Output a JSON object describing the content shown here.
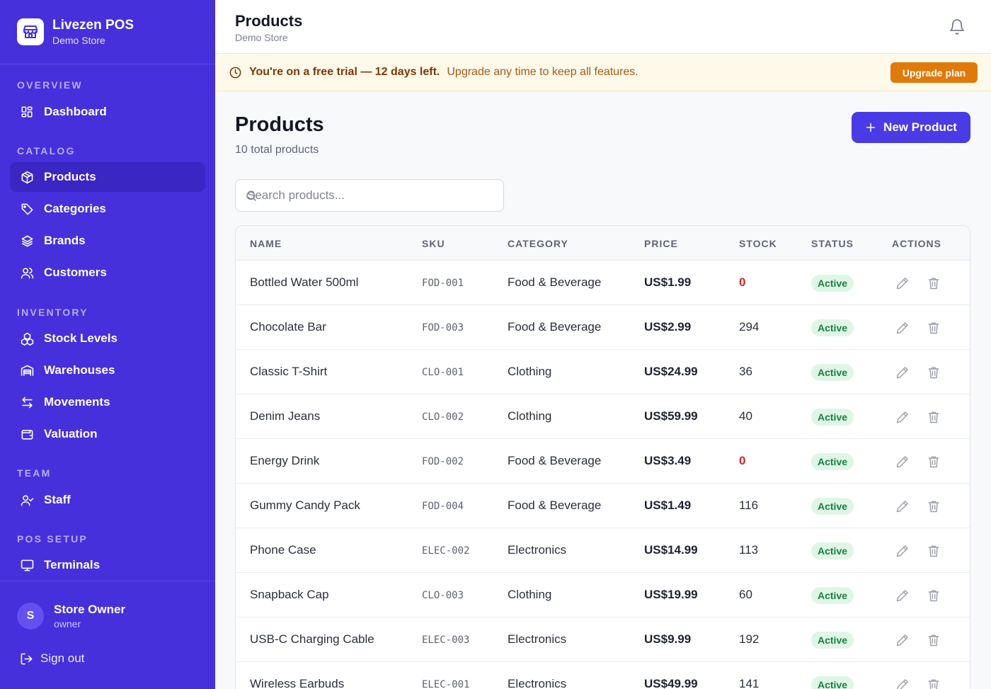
{
  "sidebar": {
    "brand_title": "Livezen POS",
    "brand_sub": "Demo Store",
    "sections": {
      "overview": "OVERVIEW",
      "catalog": "CATALOG",
      "inventory": "INVENTORY",
      "team": "TEAM",
      "pos_setup": "POS SETUP"
    },
    "items": {
      "dashboard": "Dashboard",
      "products": "Products",
      "categories": "Categories",
      "brands": "Brands",
      "customers": "Customers",
      "stock_levels": "Stock Levels",
      "warehouses": "Warehouses",
      "movements": "Movements",
      "valuation": "Valuation",
      "staff": "Staff",
      "terminals": "Terminals"
    },
    "user": {
      "initial": "S",
      "name": "Store Owner",
      "role": "owner"
    },
    "signout": "Sign out"
  },
  "header": {
    "title": "Products",
    "subtitle": "Demo Store"
  },
  "trial": {
    "strong": "You're on a free trial — 12 days left.",
    "rest": "Upgrade any time to keep all features.",
    "button": "Upgrade plan"
  },
  "main": {
    "title": "Products",
    "count": "10 total products",
    "new_button": "New Product",
    "search_placeholder": "Search products..."
  },
  "table": {
    "columns": [
      "NAME",
      "SKU",
      "CATEGORY",
      "PRICE",
      "STOCK",
      "STATUS",
      "ACTIONS"
    ],
    "rows": [
      {
        "name": "Bottled Water 500ml",
        "sku": "FOD-001",
        "category": "Food & Beverage",
        "price": "US$1.99",
        "stock": "0",
        "status": "Active"
      },
      {
        "name": "Chocolate Bar",
        "sku": "FOD-003",
        "category": "Food & Beverage",
        "price": "US$2.99",
        "stock": "294",
        "status": "Active"
      },
      {
        "name": "Classic T-Shirt",
        "sku": "CLO-001",
        "category": "Clothing",
        "price": "US$24.99",
        "stock": "36",
        "status": "Active"
      },
      {
        "name": "Denim Jeans",
        "sku": "CLO-002",
        "category": "Clothing",
        "price": "US$59.99",
        "stock": "40",
        "status": "Active"
      },
      {
        "name": "Energy Drink",
        "sku": "FOD-002",
        "category": "Food & Beverage",
        "price": "US$3.49",
        "stock": "0",
        "status": "Active"
      },
      {
        "name": "Gummy Candy Pack",
        "sku": "FOD-004",
        "category": "Food & Beverage",
        "price": "US$1.49",
        "stock": "116",
        "status": "Active"
      },
      {
        "name": "Phone Case",
        "sku": "ELEC-002",
        "category": "Electronics",
        "price": "US$14.99",
        "stock": "113",
        "status": "Active"
      },
      {
        "name": "Snapback Cap",
        "sku": "CLO-003",
        "category": "Clothing",
        "price": "US$19.99",
        "stock": "60",
        "status": "Active"
      },
      {
        "name": "USB-C Charging Cable",
        "sku": "ELEC-003",
        "category": "Electronics",
        "price": "US$9.99",
        "stock": "192",
        "status": "Active"
      },
      {
        "name": "Wireless Earbuds",
        "sku": "ELEC-001",
        "category": "Electronics",
        "price": "US$49.99",
        "stock": "141",
        "status": "Active"
      }
    ]
  },
  "icons": [
    "store-icon",
    "dashboard-icon",
    "box-icon",
    "tag-icon",
    "layers-icon",
    "users-icon",
    "boxes-icon",
    "warehouse-icon",
    "arrows-icon",
    "wallet-icon",
    "user-check-icon",
    "monitor-icon",
    "sign-out-icon",
    "bell-icon",
    "clock-icon",
    "plus-icon",
    "search-icon",
    "edit-icon",
    "trash-icon"
  ],
  "colors": {
    "sidebar": "#4530dc",
    "active_nav": "#3a26c3",
    "primary": "#4a3be6",
    "upgrade": "#df7a08",
    "zero_stock": "#d81f26",
    "active_badge_bg": "#dff6e6",
    "active_badge_text": "#19803f"
  }
}
